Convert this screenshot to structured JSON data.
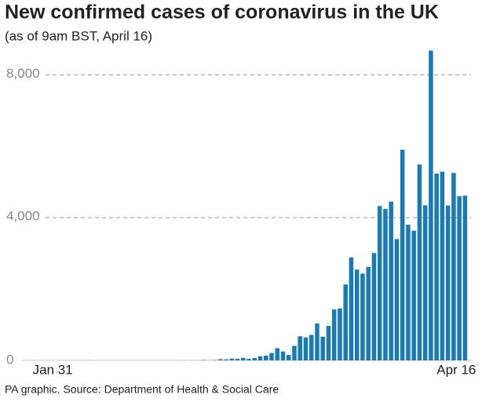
{
  "chart_data": {
    "type": "bar",
    "title": "New confirmed cases of coronavirus in the UK",
    "subtitle": "(as of 9am BST, April 16)",
    "source": "PA graphic. Source: Department of Health & Social Care",
    "categories": [
      "Jan 31",
      null,
      null,
      null,
      null,
      null,
      null,
      null,
      null,
      null,
      null,
      null,
      null,
      null,
      null,
      null,
      null,
      null,
      null,
      null,
      null,
      null,
      null,
      null,
      null,
      null,
      null,
      null,
      null,
      null,
      null,
      null,
      null,
      null,
      null,
      null,
      null,
      null,
      null,
      null,
      null,
      null,
      null,
      null,
      null,
      null,
      null,
      null,
      null,
      null,
      null,
      null,
      null,
      null,
      null,
      null,
      null,
      null,
      null,
      null,
      null,
      null,
      null,
      null,
      null,
      null,
      null,
      null,
      null,
      null,
      null,
      null,
      null,
      null,
      null,
      null,
      "Apr 16"
    ],
    "values": [
      2,
      0,
      0,
      0,
      0,
      0,
      1,
      0,
      0,
      0,
      4,
      1,
      0,
      0,
      0,
      1,
      0,
      0,
      0,
      0,
      0,
      0,
      0,
      0,
      0,
      0,
      4,
      2,
      5,
      3,
      13,
      4,
      11,
      34,
      29,
      48,
      45,
      69,
      43,
      67,
      114,
      134,
      208,
      342,
      251,
      152,
      407,
      676,
      643,
      714,
      1035,
      665,
      967,
      1427,
      1452,
      2129,
      2885,
      2546,
      2433,
      2619,
      3009,
      4324,
      4244,
      4450,
      3400,
      5903,
      3802,
      3634,
      5491,
      4344,
      8681,
      5233,
      5288,
      4342,
      5252,
      4603,
      4617
    ],
    "color": "#1a7ab5",
    "ylim": [
      0,
      8800
    ],
    "yticks": [
      0,
      {
        "value": 4000,
        "label": "4,000"
      },
      {
        "value": 8000,
        "label": "8,000"
      }
    ],
    "grid": true
  }
}
